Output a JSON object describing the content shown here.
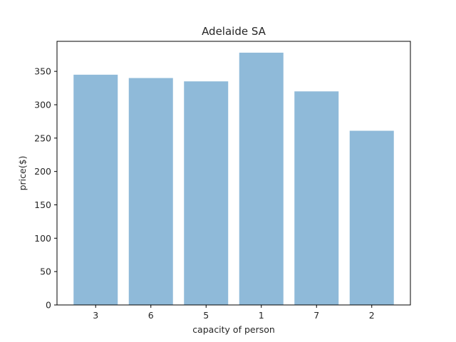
{
  "chart_data": {
    "type": "bar",
    "title": "Adelaide SA",
    "xlabel": "capacity of person",
    "ylabel": "price($)",
    "categories": [
      "3",
      "6",
      "5",
      "1",
      "7",
      "2"
    ],
    "values": [
      345,
      340,
      335,
      378,
      320,
      261
    ],
    "ylim": [
      0,
      395
    ],
    "yticks": [
      0,
      50,
      100,
      150,
      200,
      250,
      300,
      350
    ],
    "grid": false,
    "bar_color": "#8fbad9"
  }
}
